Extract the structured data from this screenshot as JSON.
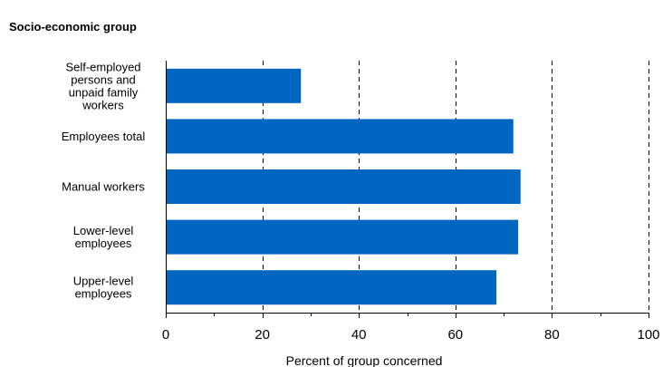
{
  "chart_data": {
    "type": "bar",
    "orientation": "horizontal",
    "title": "Socio-economic group",
    "xlabel": "Percent of group concerned",
    "ylabel": "",
    "xlim": [
      0,
      100
    ],
    "xticks": [
      0,
      20,
      40,
      60,
      80,
      100
    ],
    "grid": "vertical dashed",
    "bar_color": "#0066C0",
    "categories": [
      [
        "Self-employed",
        "persons and",
        "unpaid family",
        "workers"
      ],
      [
        "Employees total"
      ],
      [
        "Manual workers"
      ],
      [
        "Lower-level",
        "employees"
      ],
      [
        "Upper-level",
        "employees"
      ]
    ],
    "values": [
      28,
      72,
      73.5,
      73,
      68.5
    ]
  }
}
